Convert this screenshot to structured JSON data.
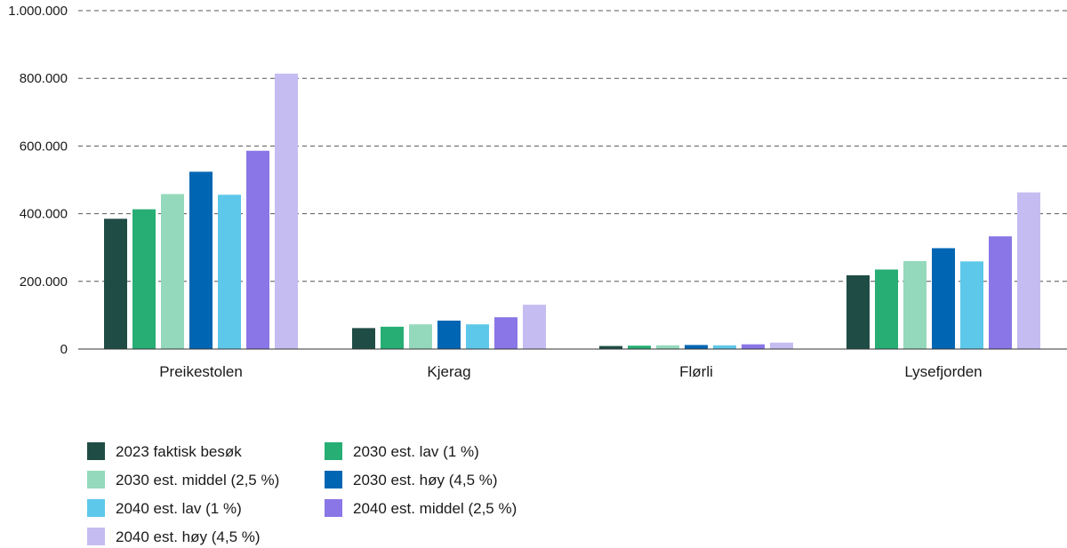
{
  "chart_data": {
    "type": "bar",
    "title": "",
    "xlabel": "",
    "ylabel": "",
    "ylim": [
      0,
      1000000
    ],
    "yticks": [
      0,
      200000,
      400000,
      600000,
      800000,
      1000000
    ],
    "ytick_labels": [
      "0",
      "200.000",
      "400.000",
      "600.000",
      "800.000",
      "1.000.000"
    ],
    "grid": true,
    "legend_position": "bottom-left",
    "categories": [
      "Preikestolen",
      "Kjerag",
      "Flørli",
      "Lysefjorden"
    ],
    "series": [
      {
        "name": "2023 faktisk besøk",
        "color": "#1f4d45",
        "values": [
          385000,
          62000,
          9000,
          218000
        ]
      },
      {
        "name": "2030 est. lav (1 %)",
        "color": "#27ae74",
        "values": [
          413000,
          66000,
          10000,
          235000
        ]
      },
      {
        "name": "2030 est. middel (2,5 %)",
        "color": "#94d9bb",
        "values": [
          458000,
          73000,
          11000,
          260000
        ]
      },
      {
        "name": "2030 est. høy (4,5 %)",
        "color": "#0066b3",
        "values": [
          524000,
          84000,
          12000,
          298000
        ]
      },
      {
        "name": "2040 est. lav (1 %)",
        "color": "#5ec8ea",
        "values": [
          456000,
          73000,
          11000,
          259000
        ]
      },
      {
        "name": "2040 est. middel (2,5 %)",
        "color": "#8a76e6",
        "values": [
          586000,
          94000,
          14000,
          333000
        ]
      },
      {
        "name": "2040 est. høy (4,5 %)",
        "color": "#c5bcf2",
        "values": [
          814000,
          131000,
          19000,
          463000
        ]
      }
    ]
  }
}
